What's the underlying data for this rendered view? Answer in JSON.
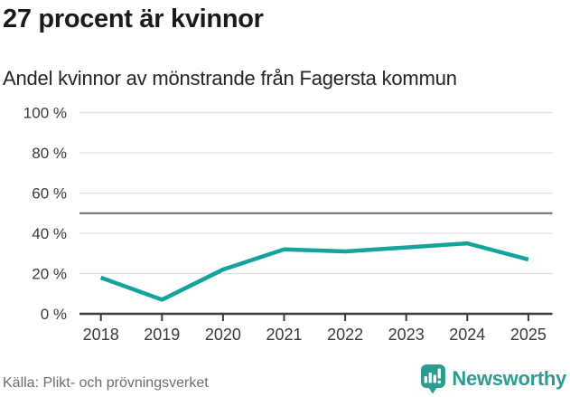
{
  "header": {
    "title": "27 procent är kvinnor",
    "subtitle": "Andel kvinnor av mönstrande från Fagersta kommun"
  },
  "chart_data": {
    "type": "line",
    "title": "27 procent är kvinnor",
    "subtitle": "Andel kvinnor av mönstrande från Fagersta kommun",
    "categories": [
      "2018",
      "2019",
      "2020",
      "2021",
      "2022",
      "2023",
      "2024",
      "2025"
    ],
    "values": [
      18,
      7,
      22,
      32,
      31,
      33,
      35,
      27
    ],
    "series_name": "Andel kvinnor av mönstrande",
    "unit": "%",
    "xlabel": "",
    "ylabel": "",
    "ylim": [
      0,
      100
    ],
    "yticks": [
      0,
      20,
      40,
      60,
      80,
      100
    ],
    "ytick_suffix": " %",
    "reference_line": 50,
    "grid": true,
    "legend_position": "none",
    "line_color": "#12a49a"
  },
  "footer": {
    "source": "Källa: Plikt- och prövningsverket",
    "brand": "Newsworthy"
  },
  "colors": {
    "line": "#12a49a",
    "grid": "#dfdfdf",
    "reference": "#6a6d70",
    "axis": "#3b3b3b",
    "tick_text": "#3a3a3a",
    "title_text": "#1a1a1a",
    "muted_text": "#6d6d6d",
    "brand": "#2e9b92"
  }
}
